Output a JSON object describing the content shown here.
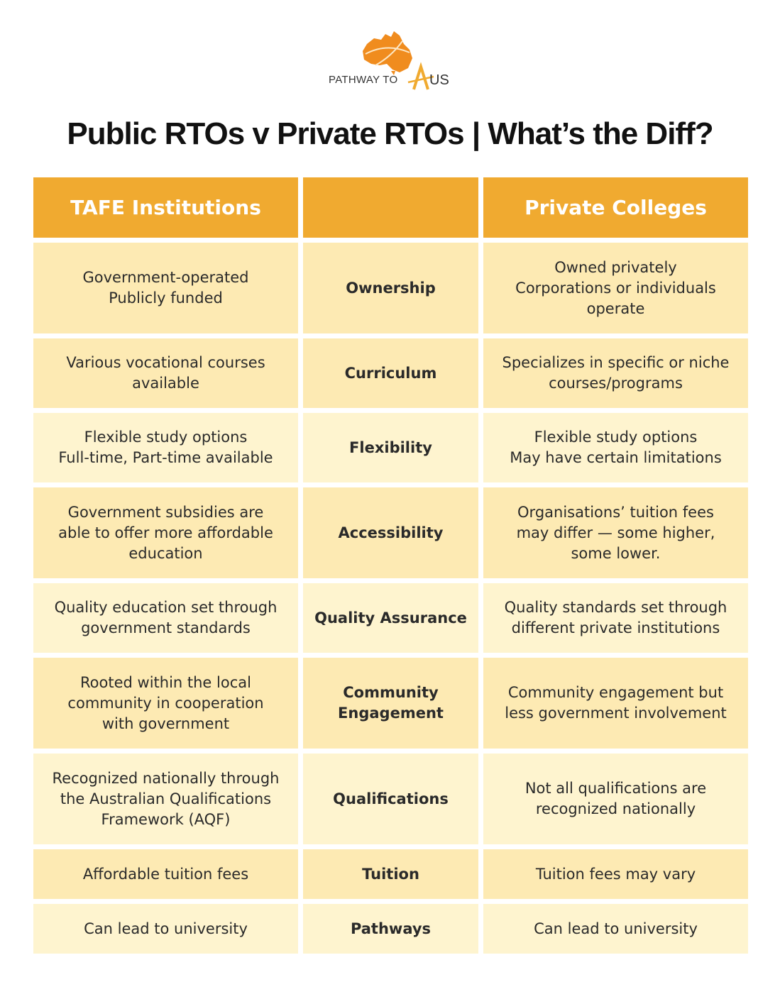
{
  "logo": {
    "text_left": "PATHWAY TO",
    "text_right": "US",
    "colors": {
      "map": "#f08c1e",
      "accent": "#f0aa30"
    }
  },
  "title": "Public RTOs v Private RTOs | What’s the Diff?",
  "headers": {
    "left": "TAFE Institutions",
    "middle": "",
    "right": "Private Colleges"
  },
  "colors": {
    "header": "#f0aa30",
    "row_dark": "#fdeab3",
    "row_light": "#fef4cf"
  },
  "rows": [
    {
      "label": "Ownership",
      "tafe": "Government-operated\nPublicly funded",
      "private": "Owned privately\nCorporations or individuals\noperate"
    },
    {
      "label": "Curriculum",
      "tafe": "Various vocational courses\navailable",
      "private": "Specializes in specific or niche\ncourses/programs"
    },
    {
      "label": "Flexibility",
      "tafe": "Flexible study options\nFull-time, Part-time available",
      "private": "Flexible study options\nMay have certain limitations"
    },
    {
      "label": "Accessibility",
      "tafe": "Government subsidies are\nable to offer more affordable\neducation",
      "private": "Organisations’ tuition fees\nmay differ — some higher,\nsome lower."
    },
    {
      "label": "Quality Assurance",
      "tafe": "Quality education set through\ngovernment standards",
      "private": "Quality standards set through\ndifferent private institutions"
    },
    {
      "label": "Community\nEngagement",
      "tafe": "Rooted within the local\ncommunity in cooperation\nwith government",
      "private": "Community engagement but\nless government involvement"
    },
    {
      "label": "Qualifications",
      "tafe": "Recognized nationally through\nthe Australian Qualifications\nFramework (AQF)",
      "private": "Not all qualifications are\nrecognized nationally"
    },
    {
      "label": "Tuition",
      "tafe": "Affordable tuition fees",
      "private": "Tuition fees may vary"
    },
    {
      "label": "Pathways",
      "tafe": "Can lead to university",
      "private": "Can lead to university"
    }
  ]
}
